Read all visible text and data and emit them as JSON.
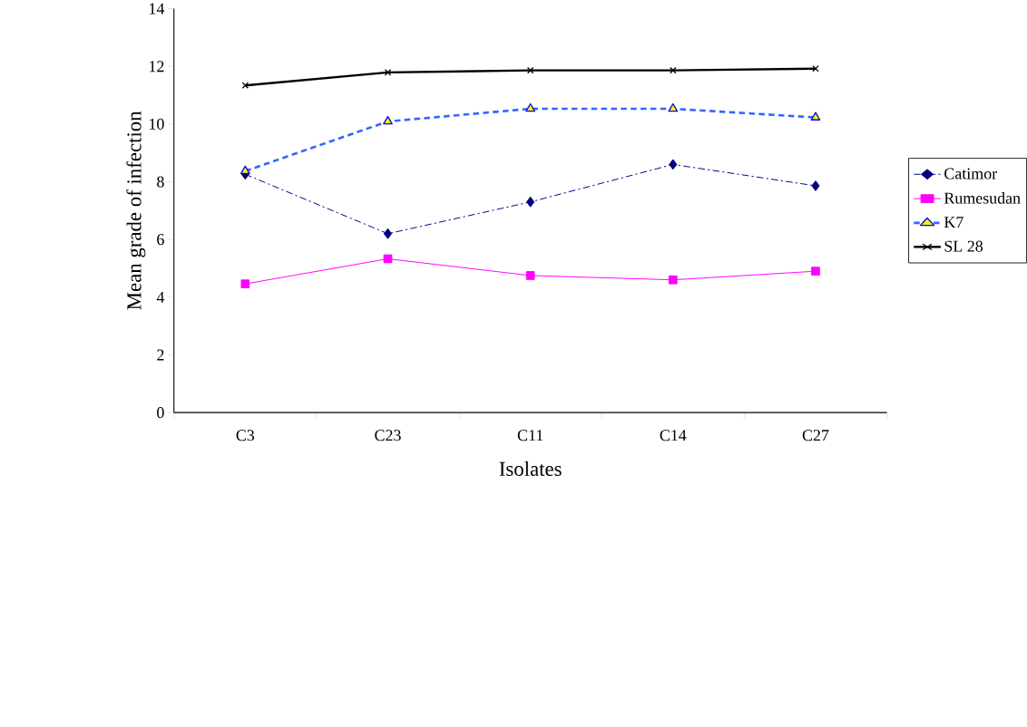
{
  "chart_data": {
    "type": "line",
    "xlabel": "Isolates",
    "ylabel": "Mean grade of infection",
    "categories": [
      "C3",
      "C23",
      "C11",
      "C14",
      "C27"
    ],
    "series": [
      {
        "name": "Catimor",
        "color": "#000080",
        "marker": "diamond",
        "line_style": "dashdot",
        "values": [
          8.26,
          6.2,
          7.3,
          8.6,
          7.86
        ]
      },
      {
        "name": "Rumesudan",
        "color": "#ff00ff",
        "marker": "square",
        "line_style": "solid",
        "values": [
          4.46,
          5.33,
          4.75,
          4.6,
          4.9
        ]
      },
      {
        "name": "K7",
        "color": "#3366ff",
        "marker": "triangle",
        "line_style": "dashed",
        "values": [
          8.37,
          10.09,
          10.53,
          10.53,
          10.23
        ]
      },
      {
        "name": "SL 28",
        "color": "#000000",
        "marker": "cross",
        "line_style": "solid",
        "values": [
          11.34,
          11.79,
          11.86,
          11.86,
          11.92
        ]
      }
    ],
    "ylim": [
      0,
      14
    ],
    "yticks": [
      0,
      2,
      4,
      6,
      8,
      10,
      12,
      14
    ],
    "grid": false,
    "legend": "right"
  }
}
